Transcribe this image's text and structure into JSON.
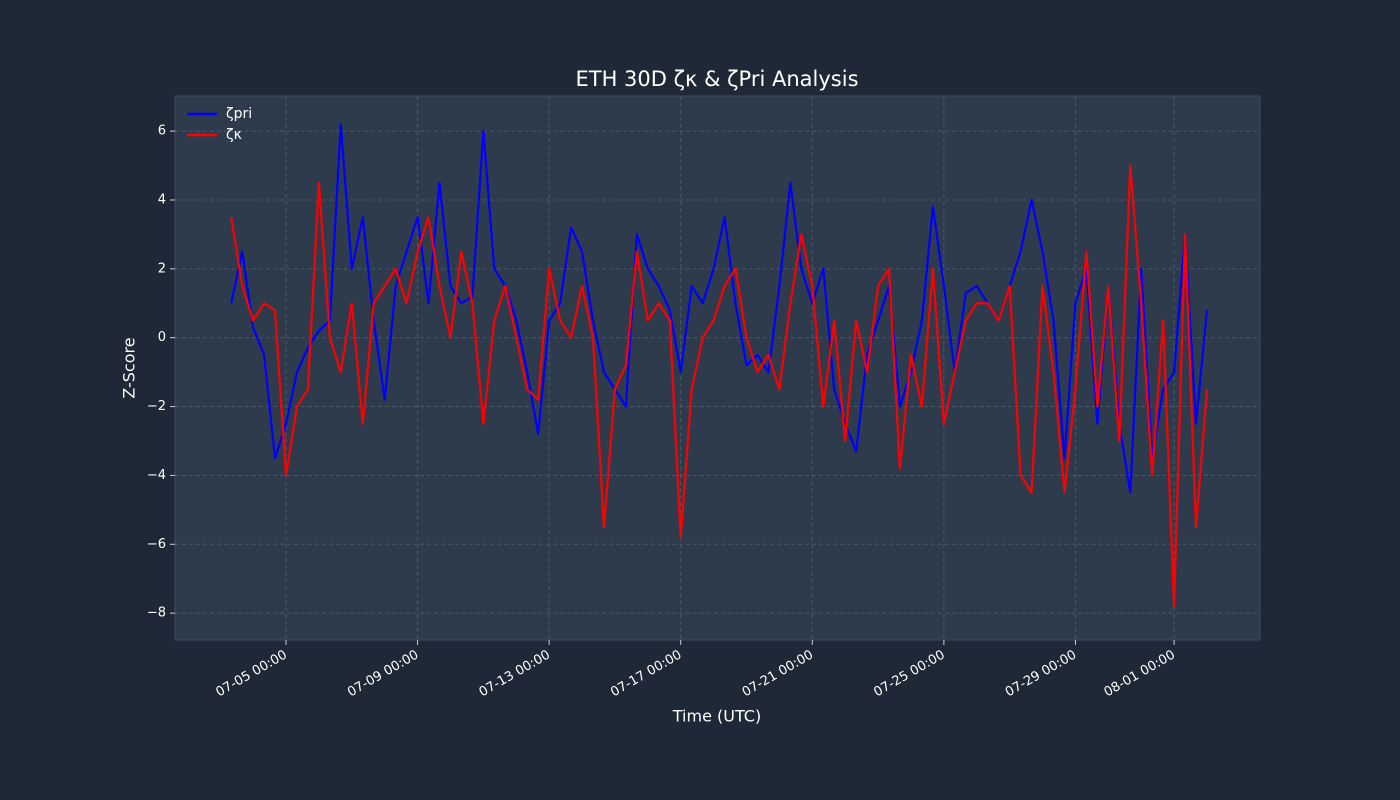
{
  "chart_data": {
    "type": "line",
    "title": "ETH 30D ζκ & ζPri Analysis",
    "x_label": "Time (UTC)",
    "y_label": "Z-Score",
    "x": [
      "07-03 08:00",
      "07-03 16:00",
      "07-04 00:00",
      "07-04 08:00",
      "07-04 16:00",
      "07-05 00:00",
      "07-05 08:00",
      "07-05 16:00",
      "07-06 00:00",
      "07-06 08:00",
      "07-06 16:00",
      "07-07 00:00",
      "07-07 08:00",
      "07-07 16:00",
      "07-08 00:00",
      "07-08 08:00",
      "07-08 16:00",
      "07-09 00:00",
      "07-09 08:00",
      "07-09 16:00",
      "07-10 00:00",
      "07-10 08:00",
      "07-10 16:00",
      "07-11 00:00",
      "07-11 08:00",
      "07-11 16:00",
      "07-12 00:00",
      "07-12 08:00",
      "07-12 16:00",
      "07-13 00:00",
      "07-13 08:00",
      "07-13 16:00",
      "07-14 00:00",
      "07-14 08:00",
      "07-14 16:00",
      "07-15 00:00",
      "07-15 08:00",
      "07-15 16:00",
      "07-16 00:00",
      "07-16 08:00",
      "07-16 16:00",
      "07-17 00:00",
      "07-17 08:00",
      "07-17 16:00",
      "07-18 00:00",
      "07-18 08:00",
      "07-18 16:00",
      "07-19 00:00",
      "07-19 08:00",
      "07-19 16:00",
      "07-20 00:00",
      "07-20 08:00",
      "07-20 16:00",
      "07-21 00:00",
      "07-21 08:00",
      "07-21 16:00",
      "07-22 00:00",
      "07-22 08:00",
      "07-22 16:00",
      "07-23 00:00",
      "07-23 08:00",
      "07-23 16:00",
      "07-24 00:00",
      "07-24 08:00",
      "07-24 16:00",
      "07-25 00:00",
      "07-25 08:00",
      "07-25 16:00",
      "07-26 00:00",
      "07-26 08:00",
      "07-26 16:00",
      "07-27 00:00",
      "07-27 08:00",
      "07-27 16:00",
      "07-28 00:00",
      "07-28 08:00",
      "07-28 16:00",
      "07-29 00:00",
      "07-29 08:00",
      "07-29 16:00",
      "07-30 00:00",
      "07-30 08:00",
      "07-30 16:00",
      "07-31 00:00",
      "07-31 08:00",
      "07-31 16:00",
      "08-01 00:00",
      "08-01 08:00",
      "08-01 16:00",
      "08-02 00:00"
    ],
    "series": [
      {
        "name": "ζpri",
        "color": "#0000ff",
        "values": [
          1.0,
          2.5,
          0.3,
          -0.5,
          -3.5,
          -2.5,
          -1.0,
          -0.3,
          0.2,
          0.5,
          6.2,
          2.0,
          3.5,
          0.5,
          -1.8,
          1.5,
          2.5,
          3.5,
          1.0,
          4.5,
          1.5,
          1.0,
          1.2,
          6.0,
          2.0,
          1.5,
          0.5,
          -1.0,
          -2.8,
          0.5,
          1.0,
          3.2,
          2.5,
          0.5,
          -1.0,
          -1.5,
          -2.0,
          3.0,
          2.0,
          1.5,
          0.8,
          -1.0,
          1.5,
          1.0,
          2.0,
          3.5,
          1.0,
          -0.8,
          -0.5,
          -1.0,
          1.5,
          4.5,
          2.0,
          1.0,
          2.0,
          -1.5,
          -2.5,
          -3.3,
          -0.5,
          0.5,
          1.5,
          -2.0,
          -1.0,
          0.5,
          3.8,
          1.5,
          -1.0,
          1.3,
          1.5,
          1.0,
          0.5,
          1.5,
          2.5,
          4.0,
          2.5,
          0.5,
          -3.5,
          1.0,
          2.0,
          -2.5,
          1.5,
          -2.5,
          -4.5,
          2.0,
          -3.5,
          -1.5,
          -1.0,
          3.0,
          -2.5,
          0.8
        ]
      },
      {
        "name": "ζκ",
        "color": "#ff0000",
        "values": [
          3.5,
          1.5,
          0.5,
          1.0,
          0.8,
          -4.0,
          -2.0,
          -1.5,
          4.5,
          0.0,
          -1.0,
          1.0,
          -2.5,
          1.0,
          1.5,
          2.0,
          1.0,
          2.5,
          3.5,
          1.5,
          0.0,
          2.5,
          1.0,
          -2.5,
          0.5,
          1.5,
          0.0,
          -1.5,
          -1.8,
          2.0,
          0.5,
          0.0,
          1.5,
          0.0,
          -5.5,
          -1.5,
          -0.8,
          2.5,
          0.5,
          1.0,
          0.5,
          -5.8,
          -1.5,
          0.0,
          0.5,
          1.5,
          2.0,
          0.0,
          -1.0,
          -0.5,
          -1.5,
          1.0,
          3.0,
          1.5,
          -2.0,
          0.5,
          -3.0,
          0.5,
          -1.0,
          1.5,
          2.0,
          -3.8,
          -0.5,
          -2.0,
          2.0,
          -2.5,
          -1.0,
          0.5,
          1.0,
          1.0,
          0.5,
          1.5,
          -4.0,
          -4.5,
          1.5,
          -1.0,
          -4.5,
          -1.5,
          2.5,
          -2.0,
          1.5,
          -3.0,
          5.0,
          1.0,
          -4.0,
          0.5,
          -7.8,
          3.0,
          -5.5,
          -1.5
        ]
      }
    ],
    "xlim": [
      "07-01 15:00",
      "08-03 14:40"
    ],
    "xticks": [
      "07-05 00:00",
      "07-09 00:00",
      "07-13 00:00",
      "07-17 00:00",
      "07-21 00:00",
      "07-25 00:00",
      "07-29 00:00",
      "08-01 00:00"
    ],
    "ylim": [
      -8.78,
      7.02
    ],
    "yticks": [
      {
        "value": -8,
        "label": "−8"
      },
      {
        "value": -6,
        "label": "−6"
      },
      {
        "value": -4,
        "label": "−4"
      },
      {
        "value": -2,
        "label": "−2"
      },
      0,
      2,
      4,
      6
    ],
    "grid": true,
    "legend": "upper left"
  }
}
